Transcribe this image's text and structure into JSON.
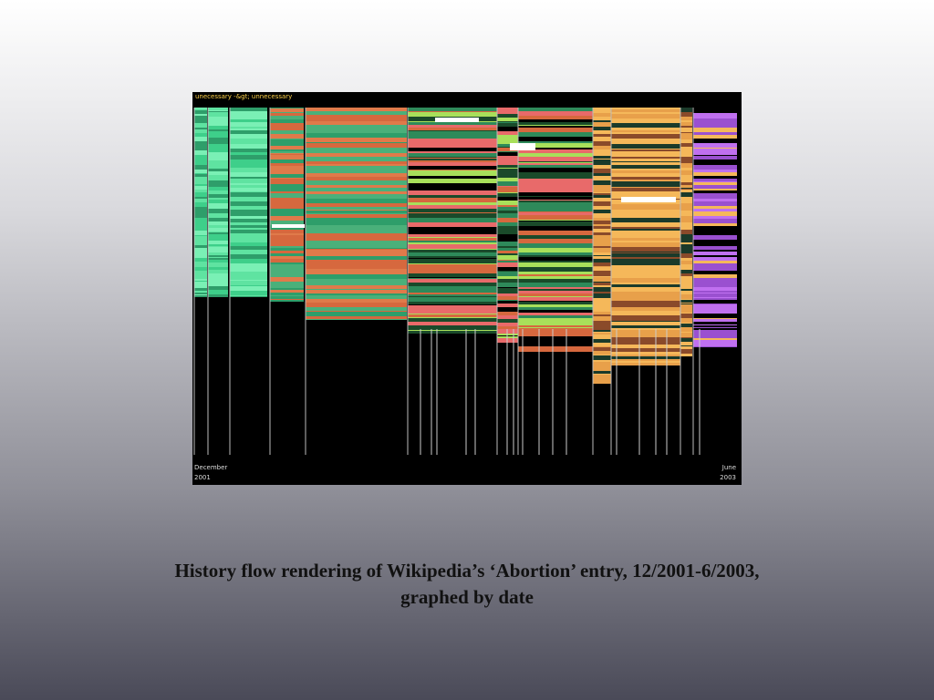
{
  "figure": {
    "header": "unecessary -&gt; unnecessary",
    "start_label": [
      "December",
      "2001"
    ],
    "end_label": [
      "June",
      "2003"
    ]
  },
  "caption": {
    "lines": [
      "History flow rendering of Wikipedia’s ‘Abortion’ entry, 12/2001-6/2003,",
      "graphed by date"
    ]
  }
}
